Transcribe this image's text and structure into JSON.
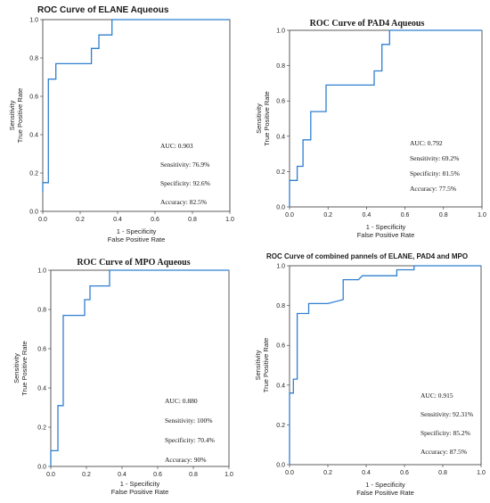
{
  "chart_data": [
    {
      "type": "line",
      "title": "ROC Curve of ELANE Aqueous",
      "xlabel": [
        "1 - Specificity",
        "False Positive Rate"
      ],
      "ylabel": [
        "Sensitivity",
        "True Positive Rate"
      ],
      "xlim": [
        0,
        1
      ],
      "ylim": [
        0,
        1
      ],
      "xticks": [
        "0.0",
        "0.2",
        "0.4",
        "0.6",
        "0.8",
        "1.0"
      ],
      "yticks": [
        "0.0",
        "0.2",
        "0.4",
        "0.6",
        "0.8",
        "1.0"
      ],
      "series": [
        {
          "x": [
            0,
            0,
            0.03,
            0.03,
            0.07,
            0.07,
            0.26,
            0.26,
            0.3,
            0.3,
            0.37,
            0.37,
            1
          ],
          "y": [
            0.1,
            0.15,
            0.15,
            0.69,
            0.69,
            0.77,
            0.77,
            0.85,
            0.85,
            0.92,
            0.92,
            1,
            1
          ]
        }
      ],
      "stats": [
        "AUC: 0.903",
        "Sensitivity: 76.9%",
        "Specificity: 92.6%",
        "Accuracy: 82.5%"
      ]
    },
    {
      "type": "line",
      "title": "ROC Curve of PAD4 Aqueous",
      "xlabel": [
        "1 - Specificity",
        "False Positive Rate"
      ],
      "ylabel": [
        "Sensitivity",
        "True Positive Rate"
      ],
      "xlim": [
        0,
        1
      ],
      "ylim": [
        0,
        1
      ],
      "xticks": [
        "0.0",
        "0.2",
        "0.4",
        "0.6",
        "0.8",
        "1.0"
      ],
      "yticks": [
        "0.0",
        "0.2",
        "0.4",
        "0.6",
        "0.8",
        "1.0"
      ],
      "series": [
        {
          "x": [
            0,
            0,
            0.04,
            0.04,
            0.07,
            0.07,
            0.11,
            0.11,
            0.19,
            0.19,
            0.44,
            0.44,
            0.48,
            0.48,
            0.52,
            0.52,
            1
          ],
          "y": [
            0,
            0.15,
            0.15,
            0.23,
            0.23,
            0.38,
            0.38,
            0.54,
            0.54,
            0.69,
            0.69,
            0.77,
            0.77,
            0.92,
            0.92,
            1,
            1
          ]
        }
      ],
      "stats": [
        "AUC: 0.792",
        "Sensitivity: 69.2%",
        "Specificity: 81.5%",
        "Accuracy: 77.5%"
      ]
    },
    {
      "type": "line",
      "title": "ROC Curve of MPO Aqueous",
      "xlabel": [
        "1 - Specificity",
        "False Positive Rate"
      ],
      "ylabel": [
        "Sensitivity",
        "True Positive Rate"
      ],
      "xlim": [
        0,
        1
      ],
      "ylim": [
        0,
        1
      ],
      "xticks": [
        "0.0",
        "0.2",
        "0.4",
        "0.6",
        "0.8",
        "1.0"
      ],
      "yticks": [
        "0.0",
        "0.2",
        "0.4",
        "0.6",
        "0.8",
        "1.0"
      ],
      "series": [
        {
          "x": [
            0,
            0,
            0.04,
            0.04,
            0.07,
            0.07,
            0.19,
            0.19,
            0.22,
            0.22,
            0.33,
            0.33,
            1
          ],
          "y": [
            0,
            0.08,
            0.08,
            0.31,
            0.31,
            0.77,
            0.77,
            0.85,
            0.85,
            0.92,
            0.92,
            1,
            1
          ]
        }
      ],
      "stats": [
        "AUC: 0.880",
        "Sensitivity: 100%",
        "Specificity: 70.4%",
        "Accuracy: 90%"
      ]
    },
    {
      "type": "line",
      "title": "ROC Curve of combined pannels of ELANE, PAD4 and MPO",
      "xlabel": [
        "1 - Specificity",
        "False Positive Rate"
      ],
      "ylabel": [
        "Sensitivity",
        "True Positive Rate"
      ],
      "xlim": [
        0,
        1
      ],
      "ylim": [
        0,
        1
      ],
      "xticks": [
        "0.0",
        "0.2",
        "0.4",
        "0.6",
        "0.8",
        "1.0"
      ],
      "yticks": [
        "0.0",
        "0.2",
        "0.4",
        "0.6",
        "0.8",
        "1.0"
      ],
      "series": [
        {
          "x": [
            0,
            0,
            0.02,
            0.02,
            0.04,
            0.04,
            0.06,
            0.06,
            0.1,
            0.1,
            0.2,
            0.28,
            0.28,
            0.36,
            0.38,
            0.56,
            0.56,
            0.65,
            0.65,
            1
          ],
          "y": [
            0,
            0.36,
            0.36,
            0.43,
            0.43,
            0.76,
            0.76,
            0.76,
            0.76,
            0.81,
            0.81,
            0.83,
            0.93,
            0.93,
            0.95,
            0.95,
            0.98,
            0.98,
            1,
            1
          ]
        }
      ],
      "stats": [
        "AUC: 0.915",
        "Sensitivity: 92.31%",
        "Specificity: 85.2%",
        "Accuracy: 87.5%"
      ]
    }
  ]
}
